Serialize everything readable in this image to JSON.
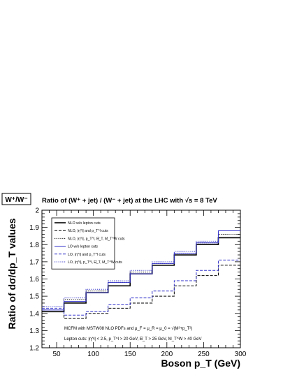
{
  "chart_data": {
    "type": "line",
    "box_label": "W⁺/W⁻",
    "title": "Ratio of (W⁺ + jet) / (W⁻ + jet) at the LHC with √s = 8 TeV",
    "xlabel": "Boson p_T  (GeV)",
    "ylabel": "Ratio of dσ/dp_T values",
    "xlim": [
      30,
      300
    ],
    "ylim": [
      1.2,
      2.0
    ],
    "x_ticks": [
      50,
      100,
      150,
      200,
      250,
      300
    ],
    "y_ticks": [
      1.2,
      1.3,
      1.4,
      1.5,
      1.6,
      1.7,
      1.8,
      1.9,
      2.0
    ],
    "bin_edges": [
      30,
      60,
      90,
      120,
      150,
      180,
      210,
      240,
      270,
      300
    ],
    "series": [
      {
        "name": "NLO w/o lepton cuts",
        "color": "#000000",
        "dash": "solid",
        "width": 1.6,
        "values": [
          1.41,
          1.46,
          1.52,
          1.56,
          1.63,
          1.68,
          1.74,
          1.8,
          1.84
        ]
      },
      {
        "name": "NLO, |η^l| and p_T^l cuts",
        "color": "#000000",
        "dash": "dashed",
        "width": 1.0,
        "values": [
          1.41,
          1.37,
          1.4,
          1.43,
          1.46,
          1.5,
          1.56,
          1.62,
          1.68
        ]
      },
      {
        "name": "NLO, |η^l|, p_T^l, E̸_T, M_T^W cuts",
        "color": "#000000",
        "dash": "dotted",
        "width": 1.0,
        "values": [
          1.41,
          1.48,
          1.53,
          1.58,
          1.64,
          1.69,
          1.75,
          1.81,
          1.86
        ]
      },
      {
        "name": "LO w/o lepton cuts",
        "color": "#3333cc",
        "dash": "solid",
        "width": 1.0,
        "values": [
          1.42,
          1.47,
          1.52,
          1.58,
          1.63,
          1.69,
          1.75,
          1.81,
          1.88
        ]
      },
      {
        "name": "LO, |η^l| and p_T^l cuts",
        "color": "#3333cc",
        "dash": "dashed",
        "width": 1.0,
        "values": [
          1.43,
          1.39,
          1.41,
          1.45,
          1.49,
          1.53,
          1.59,
          1.65,
          1.71
        ]
      },
      {
        "name": "LO, |η^l|, p_T^l, E̸_T, M_T^W cuts",
        "color": "#3333cc",
        "dash": "dotted",
        "width": 1.0,
        "values": [
          1.44,
          1.49,
          1.54,
          1.59,
          1.65,
          1.7,
          1.76,
          1.82,
          1.88
        ]
      }
    ],
    "annotations": [
      "MCFM with MSTW08 NLO PDFs and μ_F = μ_R = μ_0 = √(M²+p_T²)",
      "Lepton cuts: |η^l| < 2.5, p_T^l > 20 GeV, E̸_T > 25 GeV, M_T^W > 40 GeV"
    ],
    "legend_position": "top-left",
    "grid": false
  }
}
